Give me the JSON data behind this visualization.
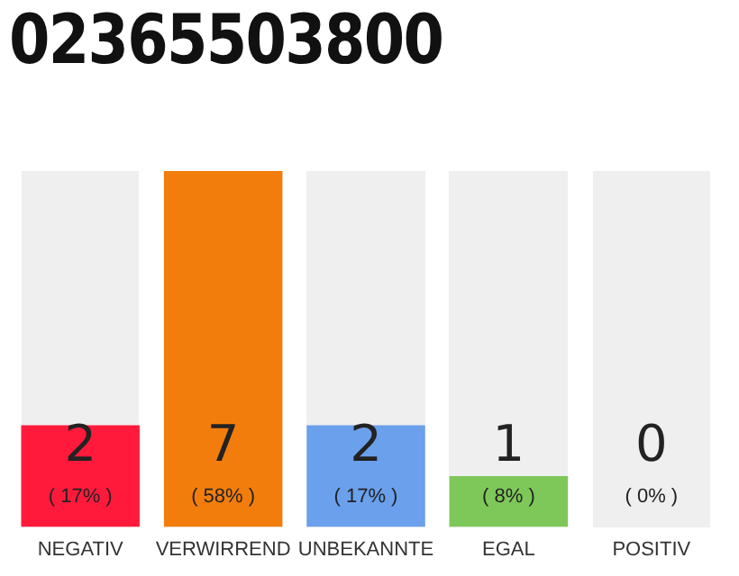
{
  "chart_data": {
    "type": "bar",
    "title": "02365503800",
    "categories": [
      "NEGATIV",
      "VERWIRREND",
      "UNBEKANNTE",
      "EGAL",
      "POSITIV"
    ],
    "values": [
      2,
      7,
      2,
      1,
      0
    ],
    "colors": [
      "#ff1a3c",
      "#f27d0c",
      "#6aa0ec",
      "#7ec85a",
      "#d0d0d0"
    ],
    "data_labels": true,
    "annotations": [
      "( 17% )",
      "( 58% )",
      "( 17% )",
      "( 8% )",
      "( 0% )"
    ],
    "grid": false,
    "legend": false
  }
}
